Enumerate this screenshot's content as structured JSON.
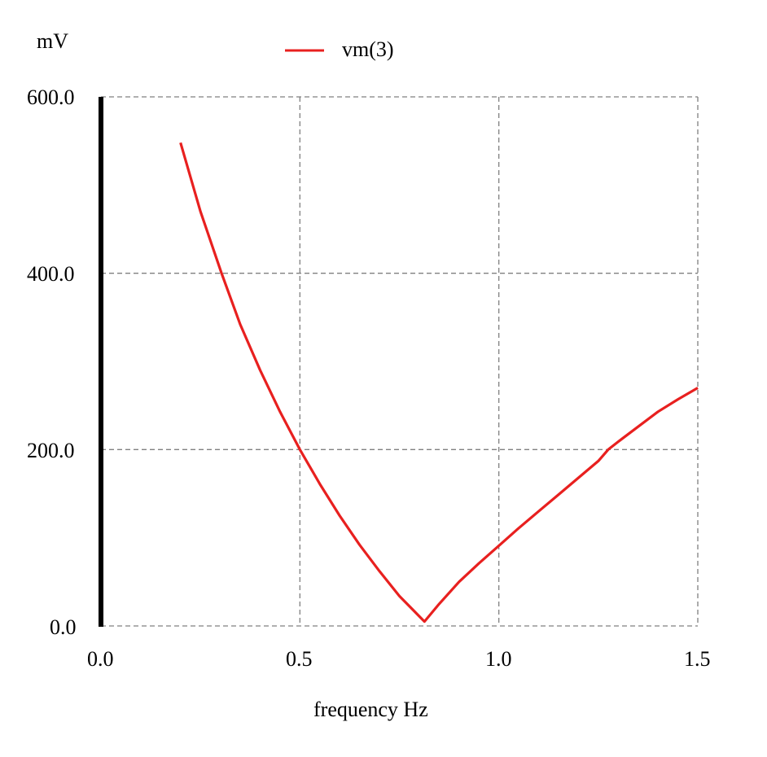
{
  "chart_data": {
    "type": "line",
    "title": "",
    "xlabel": "frequency Hz",
    "ylabel": "mV",
    "xlim": [
      0.0,
      1.5
    ],
    "ylim": [
      0.0,
      600.0
    ],
    "grid": true,
    "legend_position": "top-center",
    "x_ticks": [
      "0.0",
      "0.5",
      "1.0",
      "1.5"
    ],
    "y_ticks": [
      "0.0",
      "200.0",
      "400.0",
      "600.0"
    ],
    "series": [
      {
        "name": "vm(3)",
        "color": "#e8201f",
        "x": [
          0.2,
          0.25,
          0.303,
          0.35,
          0.4,
          0.45,
          0.5,
          0.55,
          0.6,
          0.65,
          0.7,
          0.75,
          0.8,
          0.813,
          0.85,
          0.9,
          0.95,
          1.0,
          1.05,
          1.1,
          1.15,
          1.2,
          1.25,
          1.275,
          1.3,
          1.35,
          1.4,
          1.45,
          1.5
        ],
        "values": [
          548,
          470,
          400,
          342,
          290,
          243,
          200,
          161,
          125,
          92,
          62,
          34,
          11,
          5,
          25,
          50,
          71,
          91,
          111,
          130,
          149,
          168,
          187,
          200,
          209,
          226,
          243,
          257,
          270
        ]
      }
    ]
  },
  "axes": {
    "y_unit": "mV",
    "x_label": "frequency Hz"
  },
  "legend": {
    "label": "vm(3)",
    "color": "#e8201f"
  },
  "colors": {
    "grid": "#808080",
    "axis": "#000000",
    "trace": "#e8201f"
  }
}
